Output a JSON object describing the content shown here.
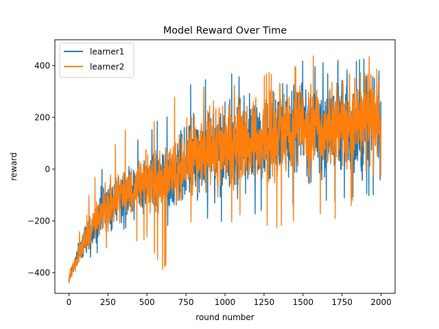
{
  "chart_data": {
    "type": "line",
    "title": "Model Reward Over Time",
    "xlabel": "round number",
    "ylabel": "reward",
    "xlim": [
      -90,
      2090
    ],
    "ylim": [
      -480,
      500
    ],
    "xticks": [
      0,
      250,
      500,
      750,
      1000,
      1250,
      1500,
      1750,
      2000
    ],
    "xtick_labels": [
      "0",
      "250",
      "500",
      "750",
      "1000",
      "1250",
      "1500",
      "1750",
      "2000"
    ],
    "yticks": [
      -400,
      -200,
      0,
      200,
      400
    ],
    "ytick_labels": [
      "−400",
      "−200",
      "0",
      "200",
      "400"
    ],
    "grid": false,
    "legend_position": "top-left",
    "series": [
      {
        "name": "learner1",
        "color": "#1f77b4",
        "n_points": 2000,
        "trend": {
          "x": [
            0,
            100,
            200,
            300,
            400,
            500,
            600,
            700,
            800,
            900,
            1000,
            1100,
            1200,
            1300,
            1400,
            1500,
            1600,
            1700,
            1800,
            1900,
            2000
          ],
          "center": [
            -425,
            -270,
            -170,
            -120,
            -90,
            -60,
            -40,
            -15,
            50,
            70,
            80,
            100,
            110,
            120,
            140,
            150,
            160,
            170,
            180,
            185,
            190
          ],
          "spread": [
            15,
            60,
            90,
            100,
            110,
            120,
            130,
            150,
            170,
            180,
            180,
            180,
            185,
            185,
            190,
            190,
            195,
            195,
            195,
            195,
            195
          ],
          "max": [
            -400,
            -130,
            0,
            60,
            120,
            160,
            200,
            280,
            350,
            370,
            370,
            380,
            380,
            400,
            400,
            420,
            420,
            430,
            430,
            430,
            430
          ],
          "min": [
            -440,
            -360,
            -330,
            -300,
            -290,
            -260,
            -240,
            -230,
            -210,
            -200,
            -210,
            -190,
            -180,
            -160,
            -150,
            -140,
            -130,
            -130,
            -130,
            -120,
            -120
          ]
        }
      },
      {
        "name": "learner2",
        "color": "#ff7f0e",
        "n_points": 2000,
        "trend": {
          "x": [
            0,
            100,
            200,
            300,
            400,
            500,
            600,
            700,
            800,
            900,
            1000,
            1100,
            1200,
            1300,
            1400,
            1500,
            1600,
            1700,
            1800,
            1900,
            2000
          ],
          "center": [
            -425,
            -270,
            -170,
            -110,
            -80,
            -50,
            -35,
            -10,
            50,
            70,
            90,
            100,
            110,
            130,
            140,
            160,
            170,
            175,
            180,
            185,
            190
          ],
          "spread": [
            15,
            60,
            80,
            95,
            100,
            110,
            115,
            130,
            150,
            160,
            160,
            165,
            170,
            170,
            170,
            175,
            175,
            180,
            180,
            180,
            180
          ],
          "max": [
            -400,
            -140,
            30,
            120,
            170,
            190,
            220,
            300,
            320,
            330,
            340,
            350,
            370,
            380,
            410,
            430,
            450,
            450,
            450,
            450,
            440
          ],
          "min": [
            -440,
            -370,
            -320,
            -290,
            -280,
            -280,
            -410,
            -230,
            -200,
            -200,
            -220,
            -200,
            -190,
            -250,
            -220,
            -180,
            -170,
            -200,
            -150,
            -120,
            -110
          ]
        }
      }
    ]
  }
}
